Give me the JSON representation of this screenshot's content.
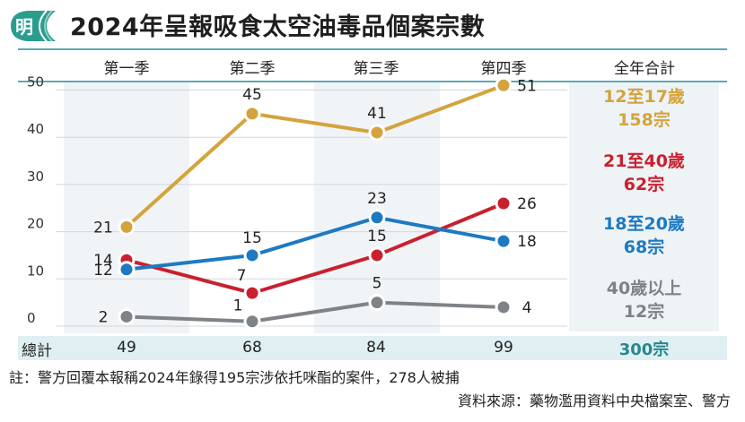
{
  "title": "2024年呈報吸食太空油毒品個案宗數",
  "logo_text": "明",
  "colors": {
    "accent_line": "#5fa7b4",
    "band": "#eef3f5",
    "total_bg": "#dfeff2",
    "total_text": "#27888e"
  },
  "header": {
    "total_column": "全年合計"
  },
  "chart_data": {
    "type": "line",
    "categories": [
      "第一季",
      "第二季",
      "第三季",
      "第四季"
    ],
    "ylim": [
      0,
      52
    ],
    "yticks": [
      0,
      10,
      20,
      30,
      40,
      50
    ],
    "series": [
      {
        "name": "12至17歲",
        "values": [
          21,
          45,
          41,
          51
        ],
        "color": "#d4a33d",
        "total": "158宗"
      },
      {
        "name": "21至40歲",
        "values": [
          14,
          7,
          15,
          26
        ],
        "color": "#c9202f",
        "total": "62宗"
      },
      {
        "name": "18至20歲",
        "values": [
          12,
          15,
          23,
          18
        ],
        "color": "#1d79c2",
        "total": "68宗"
      },
      {
        "name": "40歲以上",
        "values": [
          2,
          1,
          5,
          4
        ],
        "color": "#7f8387",
        "total": "12宗"
      }
    ]
  },
  "totals": {
    "label": "總計",
    "values": [
      "49",
      "68",
      "84",
      "99"
    ],
    "grand": "300宗"
  },
  "note": "註：警方回覆本報稱2024年錄得195宗涉依托咪酯的案件，278人被捕",
  "source": "資料來源：藥物濫用資料中央檔案室、警方"
}
